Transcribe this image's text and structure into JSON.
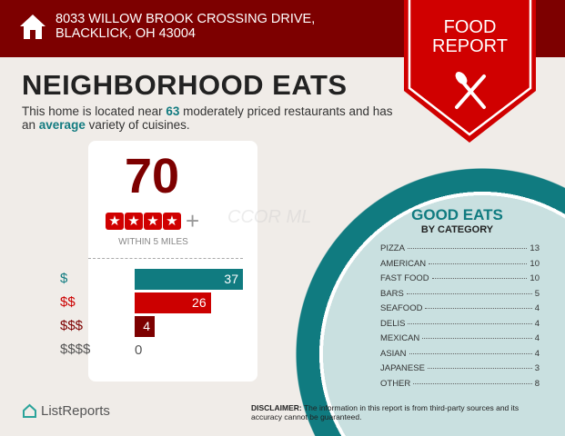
{
  "header": {
    "address": "8033 WILLOW BROOK CROSSING DRIVE, BLACKLICK, OH 43004",
    "badge_line1": "FOOD",
    "badge_line2": "REPORT"
  },
  "title": "NEIGHBORHOOD EATS",
  "intro": {
    "pre": "This home is located near ",
    "count": "63",
    "mid": " moderately priced restaurants and has an ",
    "variety": "average",
    "post": " variety of cuisines."
  },
  "summary": {
    "total": "70",
    "rating_stars": 4,
    "plus": "+",
    "within": "WITHIN 5 MILES"
  },
  "price_levels": [
    {
      "label": "$",
      "value": 37,
      "display": "37",
      "color": "#107b80"
    },
    {
      "label": "$$",
      "value": 26,
      "display": "26",
      "color": "#cc0000"
    },
    {
      "label": "$$$",
      "value": 4,
      "display": "4",
      "color": "#7d0000"
    },
    {
      "label": "$$$$",
      "value": 0,
      "display": "0",
      "color": "#555555"
    }
  ],
  "watermark": "CCOR ML",
  "good_eats": {
    "title": "GOOD EATS",
    "subtitle": "BY CATEGORY",
    "categories": [
      {
        "name": "PIZZA",
        "count": "13"
      },
      {
        "name": "AMERICAN",
        "count": "10"
      },
      {
        "name": "FAST FOOD",
        "count": "10"
      },
      {
        "name": "BARS",
        "count": "5"
      },
      {
        "name": "SEAFOOD",
        "count": "4"
      },
      {
        "name": "DELIS",
        "count": "4"
      },
      {
        "name": "MEXICAN",
        "count": "4"
      },
      {
        "name": "ASIAN",
        "count": "4"
      },
      {
        "name": "JAPANESE",
        "count": "3"
      },
      {
        "name": "OTHER",
        "count": "8"
      }
    ]
  },
  "footer": {
    "brand": "ListReports",
    "disclaimer_label": "DISCLAIMER:",
    "disclaimer": " The information in this report is from third-party sources and its accuracy cannot be guaranteed."
  },
  "colors": {
    "dark_red": "#7d0000",
    "red": "#cc0000",
    "teal": "#107b80"
  }
}
